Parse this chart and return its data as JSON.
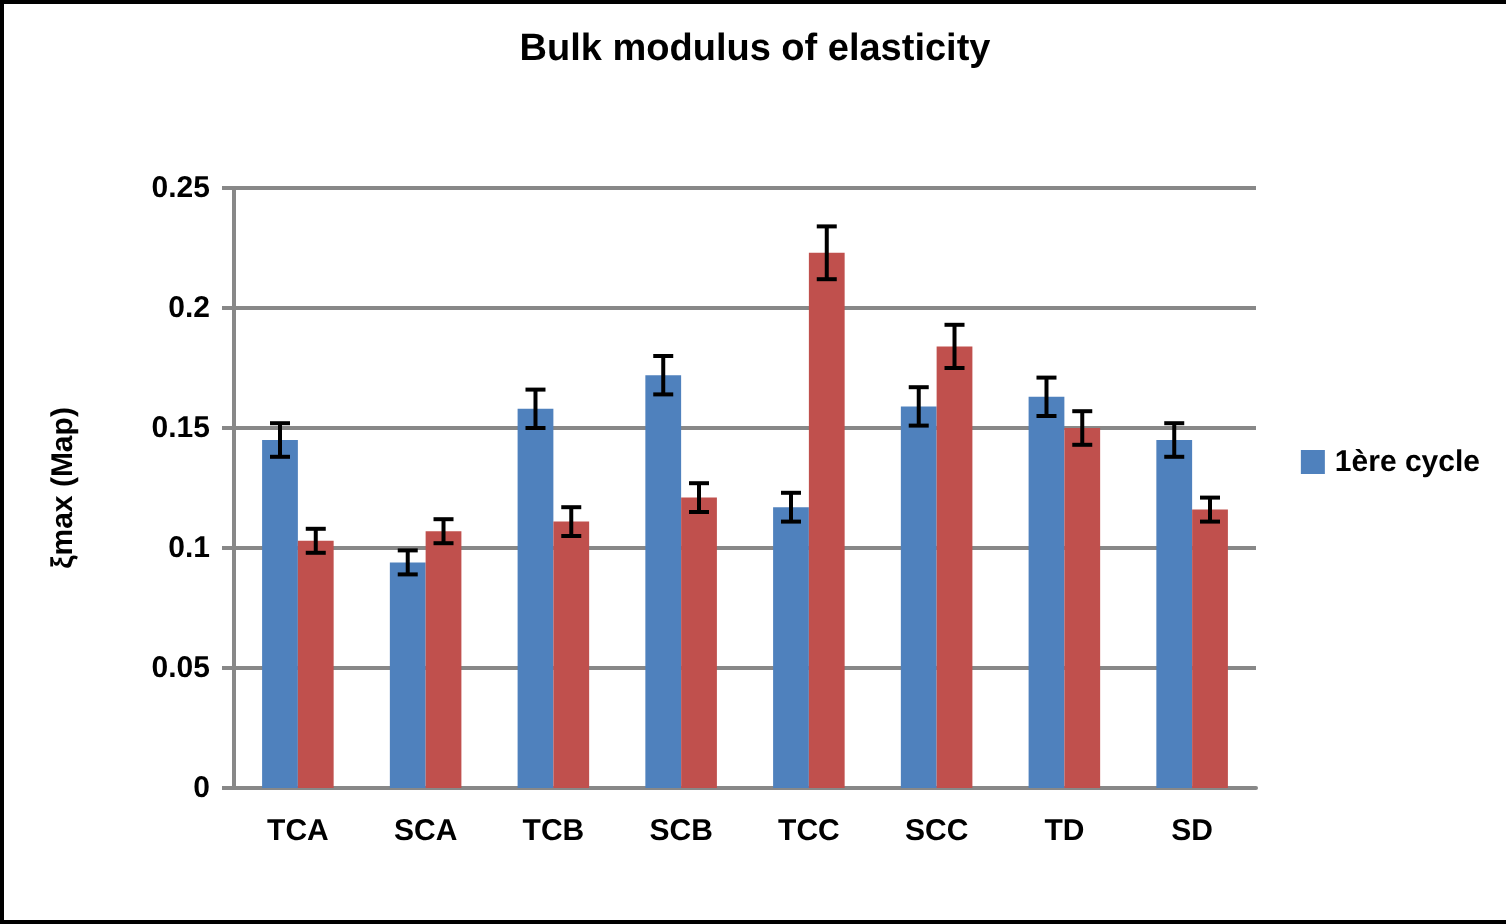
{
  "chart_data": {
    "type": "bar",
    "title": "Bulk modulus of elasticity",
    "ylabel": "ξmax (Map)",
    "categories": [
      "TCA",
      "SCA",
      "TCB",
      "SCB",
      "TCC",
      "SCC",
      "TD",
      "SD"
    ],
    "series": [
      {
        "name": "1ère cycle",
        "color": "#4f81bd",
        "values": [
          0.145,
          0.094,
          0.158,
          0.172,
          0.117,
          0.159,
          0.163,
          0.145
        ],
        "errors": [
          0.007,
          0.005,
          0.008,
          0.008,
          0.006,
          0.008,
          0.008,
          0.007
        ]
      },
      {
        "color": "#c0504d",
        "values": [
          0.103,
          0.107,
          0.111,
          0.121,
          0.223,
          0.184,
          0.15,
          0.116
        ],
        "errors": [
          0.005,
          0.005,
          0.006,
          0.006,
          0.011,
          0.009,
          0.007,
          0.005
        ]
      }
    ],
    "ylim": [
      0,
      0.25
    ],
    "yticks": [
      0,
      0.05,
      0.1,
      0.15,
      0.2,
      0.25
    ],
    "grid": "y",
    "legend": "right"
  }
}
